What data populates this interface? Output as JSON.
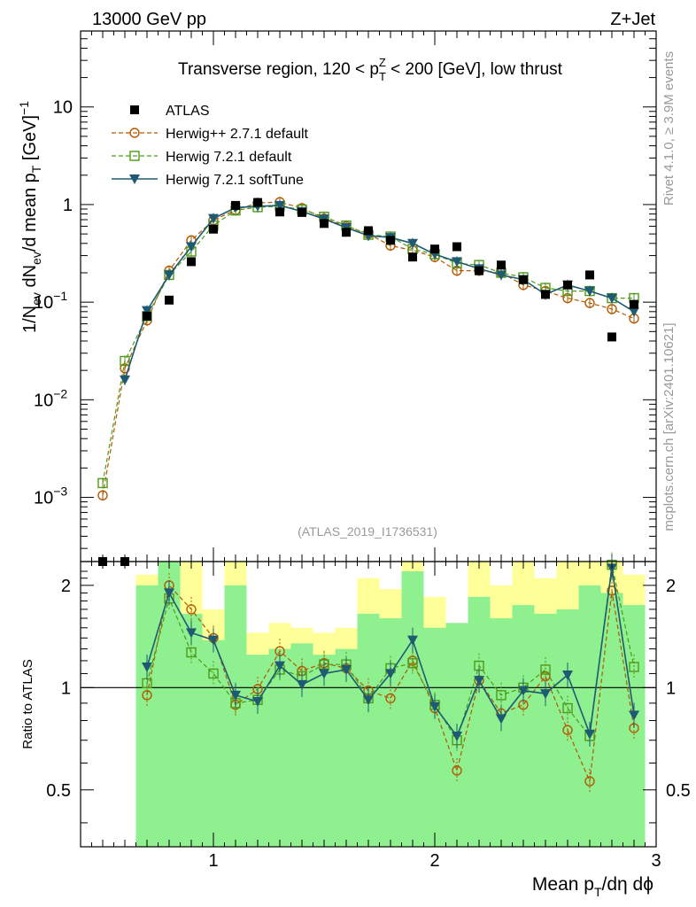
{
  "header": {
    "left": "13000 GeV pp",
    "right": "Z+Jet"
  },
  "side": {
    "rivet": "Rivet 4.1.0, ≥ 3.9M events",
    "mcplots": "mcplots.cern.ch [arXiv:2401.10621]"
  },
  "colors": {
    "atlas": "#000000",
    "herwigpp": "#b35900",
    "herwig721": "#4f9a1a",
    "softtune": "#1f5a73",
    "band_green": "#8ff08f",
    "band_yellow": "#ffff99"
  },
  "chart_data": [
    {
      "type": "scatter",
      "title": "Transverse region, 120 < p_T^Z < 200 [GeV], low thrust",
      "watermark": "(ATLAS_2019_I1736531)",
      "ylabel": "1/N_ev dN_ev/d mean p_T [GeV]^-1",
      "yscale": "log",
      "ylim": [
        0.00022,
        60
      ],
      "xlim": [
        0.4,
        3.0
      ],
      "yticks": [
        {
          "value": 0.001,
          "label": "10",
          "exp": "−3"
        },
        {
          "value": 0.01,
          "label": "10",
          "exp": "−2"
        },
        {
          "value": 0.1,
          "label": "10",
          "exp": "−1"
        },
        {
          "value": 1,
          "label": "1",
          "exp": ""
        },
        {
          "value": 10,
          "label": "10",
          "exp": ""
        }
      ],
      "legend": [
        {
          "key": "atlas",
          "label": "ATLAS"
        },
        {
          "key": "herwigpp",
          "label": "Herwig++ 2.7.1 default"
        },
        {
          "key": "herwig721",
          "label": "Herwig 7.2.1 default"
        },
        {
          "key": "softtune",
          "label": "Herwig 7.2.1 softTune"
        }
      ],
      "x": [
        0.5,
        0.6,
        0.7,
        0.8,
        0.9,
        1.0,
        1.1,
        1.2,
        1.3,
        1.4,
        1.5,
        1.6,
        1.7,
        1.8,
        1.9,
        2.0,
        2.1,
        2.2,
        2.3,
        2.4,
        2.5,
        2.6,
        2.7,
        2.8,
        2.9
      ],
      "series": [
        {
          "key": "atlas",
          "name": "ATLAS",
          "values": [
            0.00021,
            0.00021,
            0.072,
            0.105,
            0.26,
            0.56,
            0.98,
            1.05,
            0.84,
            0.83,
            0.64,
            0.52,
            0.54,
            0.43,
            0.29,
            0.35,
            0.37,
            0.21,
            0.24,
            0.17,
            0.12,
            0.15,
            0.19,
            0.044,
            0.095
          ]
        },
        {
          "key": "herwigpp",
          "name": "Herwig++ 2.7.1 default",
          "values": [
            0.00105,
            0.021,
            0.065,
            0.21,
            0.43,
            0.69,
            0.88,
            1.04,
            1.06,
            0.92,
            0.72,
            0.6,
            0.5,
            0.38,
            0.34,
            0.29,
            0.21,
            0.21,
            0.2,
            0.15,
            0.13,
            0.11,
            0.098,
            0.085,
            0.068
          ]
        },
        {
          "key": "herwig721",
          "name": "Herwig 7.2.1 default",
          "values": [
            0.0014,
            0.025,
            0.072,
            0.19,
            0.33,
            0.61,
            0.87,
            0.94,
            0.96,
            0.89,
            0.75,
            0.61,
            0.49,
            0.47,
            0.35,
            0.31,
            0.25,
            0.24,
            0.2,
            0.18,
            0.14,
            0.13,
            0.13,
            0.11,
            0.11
          ]
        },
        {
          "key": "softtune",
          "name": "Herwig 7.2.1 softTune",
          "values": [
            null,
            0.016,
            0.082,
            0.19,
            0.37,
            0.72,
            0.93,
            0.96,
            0.98,
            0.85,
            0.71,
            0.58,
            0.48,
            0.46,
            0.4,
            0.31,
            0.26,
            0.22,
            0.19,
            0.17,
            0.12,
            0.15,
            0.13,
            0.11,
            0.08
          ]
        }
      ]
    },
    {
      "type": "scatter",
      "ylabel": "Ratio to ATLAS",
      "xlabel": "Mean p_T/dη dϕ",
      "yscale": "log",
      "ylim": [
        0.34,
        2.35
      ],
      "xlim": [
        0.4,
        3.0
      ],
      "xticks": [
        1,
        2,
        3
      ],
      "yticks": [
        0.5,
        1,
        2
      ],
      "bins": [
        [
          0.65,
          0.75
        ],
        [
          0.75,
          0.85
        ],
        [
          0.85,
          0.95
        ],
        [
          0.95,
          1.05
        ],
        [
          1.05,
          1.15
        ],
        [
          1.15,
          1.25
        ],
        [
          1.25,
          1.35
        ],
        [
          1.35,
          1.45
        ],
        [
          1.45,
          1.55
        ],
        [
          1.55,
          1.65
        ],
        [
          1.65,
          1.75
        ],
        [
          1.75,
          1.85
        ],
        [
          1.85,
          1.95
        ],
        [
          1.95,
          2.05
        ],
        [
          2.05,
          2.15
        ],
        [
          2.15,
          2.25
        ],
        [
          2.25,
          2.35
        ],
        [
          2.35,
          2.45
        ],
        [
          2.45,
          2.55
        ],
        [
          2.55,
          2.65
        ],
        [
          2.65,
          2.75
        ],
        [
          2.75,
          2.85
        ],
        [
          2.85,
          2.95
        ]
      ],
      "band_green": [
        [
          0.34,
          2.0
        ],
        [
          0.34,
          2.35
        ],
        [
          0.34,
          1.65
        ],
        [
          0.34,
          1.38
        ],
        [
          0.34,
          2.0
        ],
        [
          0.34,
          1.25
        ],
        [
          0.34,
          1.3
        ],
        [
          0.34,
          1.35
        ],
        [
          0.34,
          1.25
        ],
        [
          0.34,
          1.3
        ],
        [
          0.34,
          1.65
        ],
        [
          0.34,
          1.6
        ],
        [
          0.34,
          2.2
        ],
        [
          0.34,
          1.5
        ],
        [
          0.34,
          1.55
        ],
        [
          0.34,
          1.85
        ],
        [
          0.34,
          1.6
        ],
        [
          0.34,
          1.75
        ],
        [
          0.34,
          1.65
        ],
        [
          0.34,
          1.7
        ],
        [
          0.34,
          2.0
        ],
        [
          0.34,
          1.9
        ],
        [
          0.34,
          1.75
        ]
      ],
      "band_yellow": [
        [
          0.34,
          2.15
        ],
        [
          0.34,
          2.35
        ],
        [
          0.34,
          2.35
        ],
        [
          0.34,
          1.7
        ],
        [
          0.34,
          2.35
        ],
        [
          0.34,
          1.45
        ],
        [
          0.34,
          1.55
        ],
        [
          0.34,
          1.5
        ],
        [
          0.34,
          1.45
        ],
        [
          0.34,
          1.5
        ],
        [
          0.34,
          2.1
        ],
        [
          0.34,
          1.95
        ],
        [
          0.34,
          2.35
        ],
        [
          0.34,
          1.85
        ],
        [
          0.34,
          1.45
        ],
        [
          0.34,
          2.35
        ],
        [
          0.34,
          2.0
        ],
        [
          0.34,
          2.35
        ],
        [
          0.34,
          2.1
        ],
        [
          0.34,
          2.35
        ],
        [
          0.34,
          2.35
        ],
        [
          0.34,
          2.35
        ],
        [
          0.34,
          2.15
        ]
      ],
      "x": [
        0.7,
        0.8,
        0.9,
        1.0,
        1.1,
        1.2,
        1.3,
        1.4,
        1.5,
        1.6,
        1.7,
        1.8,
        1.9,
        2.0,
        2.1,
        2.2,
        2.3,
        2.4,
        2.5,
        2.6,
        2.7,
        2.8,
        2.9
      ],
      "series": [
        {
          "key": "herwigpp",
          "name": "Herwig++ 2.7.1 default",
          "values": [
            0.95,
            2.0,
            1.7,
            1.4,
            0.89,
            0.99,
            1.28,
            1.12,
            1.18,
            1.14,
            0.98,
            0.93,
            1.2,
            0.87,
            0.57,
            1.05,
            0.84,
            0.89,
            1.08,
            0.75,
            0.53,
            1.93,
            0.76
          ]
        },
        {
          "key": "herwig721",
          "name": "Herwig 7.2.1 default",
          "values": [
            1.03,
            1.83,
            1.27,
            1.1,
            0.9,
            0.92,
            1.13,
            1.08,
            1.17,
            1.17,
            0.93,
            1.14,
            1.18,
            0.89,
            0.7,
            1.16,
            0.95,
            1.0,
            1.13,
            0.87,
            0.72,
            2.3,
            1.15
          ]
        },
        {
          "key": "softtune",
          "name": "Herwig 7.2.1 softTune",
          "values": [
            1.15,
            1.9,
            1.45,
            1.38,
            0.95,
            0.91,
            1.16,
            1.02,
            1.1,
            1.13,
            0.92,
            1.1,
            1.38,
            0.88,
            0.72,
            1.05,
            0.81,
            0.98,
            0.96,
            1.09,
            0.73,
            2.25,
            0.83
          ]
        }
      ]
    }
  ]
}
